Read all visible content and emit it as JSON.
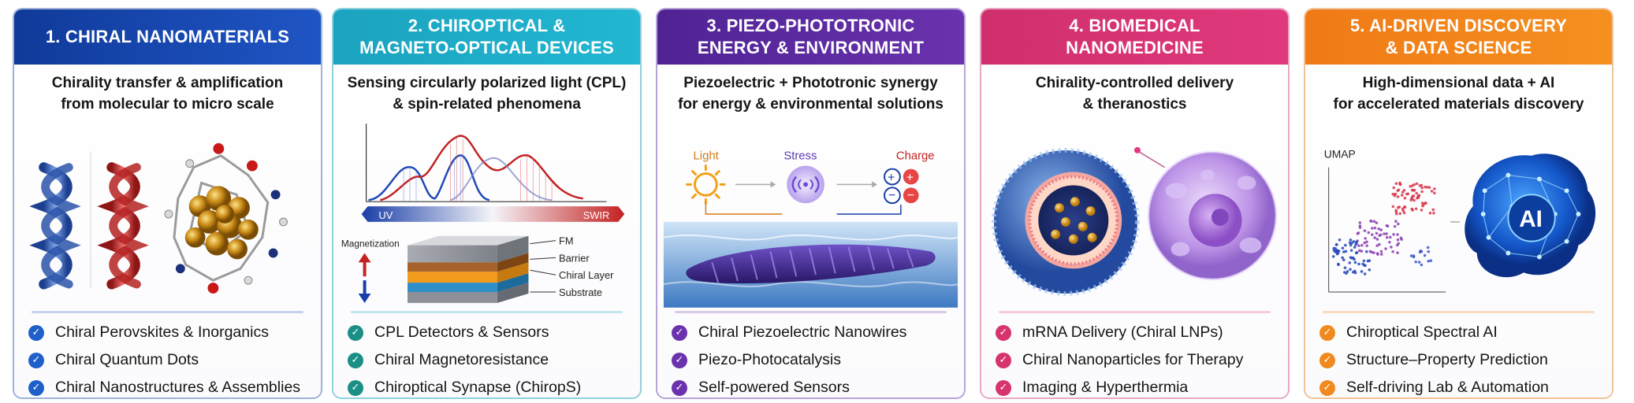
{
  "panels": [
    {
      "title_lines": [
        "1. CHIRAL NANOMATERIALS"
      ],
      "subtitle_lines": [
        "Chirality transfer & amplification",
        "from molecular to micro scale"
      ],
      "bullets": [
        "Chiral Perovskites & Inorganics",
        "Chiral Quantum Dots",
        "Chiral Nanostructures & Assemblies"
      ],
      "accent": "#1f55c4",
      "check_icon": "check-circle-icon"
    },
    {
      "title_lines": [
        "2. CHIROPTICAL &",
        "MAGNETO-OPTICAL DEVICES"
      ],
      "subtitle_lines": [
        "Sensing circularly polarized light (CPL)",
        "& spin-related phenomena"
      ],
      "bullets": [
        "CPL Detectors & Sensors",
        "Chiral Magnetoresistance",
        "Chiroptical Synapse (ChiropS)"
      ],
      "accent": "#1ba3bf",
      "spectrum": {
        "left": "UV",
        "right": "SWIR"
      },
      "stack": {
        "magnetization_label": "Magnetization",
        "layers": [
          "FM",
          "Barrier",
          "Chiral Layer",
          "Substrate"
        ]
      }
    },
    {
      "title_lines": [
        "3. PIEZO-PHOTOTRONIC",
        "ENERGY & ENVIRONMENT"
      ],
      "subtitle_lines": [
        "Piezoelectric + Phototronic synergy",
        "for energy & environmental solutions"
      ],
      "bullets": [
        "Chiral Piezoelectric Nanowires",
        "Piezo-Photocatalysis",
        "Self-powered Sensors"
      ],
      "accent": "#6a32ad",
      "flow": {
        "light": "Light",
        "stress": "Stress",
        "charge": "Charge"
      }
    },
    {
      "title_lines": [
        "4. BIOMEDICAL",
        "NANOMEDICINE"
      ],
      "subtitle_lines": [
        "Chirality-controlled delivery",
        "& theranostics"
      ],
      "bullets": [
        "mRNA Delivery (Chiral LNPs)",
        "Chiral Nanoparticles for Therapy",
        "Imaging & Hyperthermia"
      ],
      "accent": "#e0397d"
    },
    {
      "title_lines": [
        "5. AI-DRIVEN DISCOVERY",
        "& DATA SCIENCE"
      ],
      "subtitle_lines": [
        "High-dimensional data + AI",
        "for accelerated materials discovery"
      ],
      "bullets": [
        "Chiroptical Spectral AI",
        "Structure–Property Prediction",
        "Self-driving Lab & Automation"
      ],
      "accent": "#f07a16",
      "umap_label": "UMAP",
      "ai_label": "AI"
    }
  ]
}
